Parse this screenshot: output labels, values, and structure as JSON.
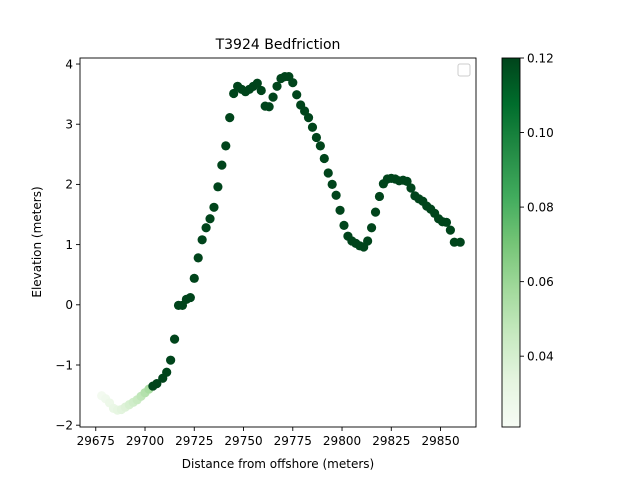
{
  "chart_data": {
    "type": "scatter",
    "title": "T3924 Bedfriction",
    "xlabel": "Distance from offshore (meters)",
    "ylabel": "Elevation (meters)",
    "xlim": [
      29667,
      29868
    ],
    "ylim": [
      -2.03,
      4.1
    ],
    "x_ticks": [
      29675,
      29700,
      29725,
      29750,
      29775,
      29800,
      29825,
      29850
    ],
    "y_ticks": [
      -2,
      -1,
      0,
      1,
      2,
      3,
      4
    ],
    "grid": false,
    "legend": "top-right (empty)",
    "colorbar": {
      "colormap": "Greens",
      "range": [
        0.021,
        0.12
      ],
      "ticks": [
        0.04,
        0.06,
        0.08,
        0.1,
        0.12
      ],
      "tick_labels": [
        "0.04",
        "0.06",
        "0.08",
        "0.10",
        "0.12"
      ]
    },
    "points": [
      [
        29678,
        -1.51,
        0.024
      ],
      [
        29680,
        -1.56,
        0.026
      ],
      [
        29682,
        -1.63,
        0.028
      ],
      [
        29684,
        -1.72,
        0.03
      ],
      [
        29686,
        -1.75,
        0.032
      ],
      [
        29688,
        -1.74,
        0.034
      ],
      [
        29690,
        -1.7,
        0.036
      ],
      [
        29692,
        -1.66,
        0.039
      ],
      [
        29694,
        -1.62,
        0.042
      ],
      [
        29696,
        -1.58,
        0.045
      ],
      [
        29698,
        -1.52,
        0.048
      ],
      [
        29700,
        -1.46,
        0.052
      ],
      [
        29702,
        -1.4,
        0.056
      ],
      [
        29704,
        -1.35,
        0.12
      ],
      [
        29706,
        -1.31,
        0.12
      ],
      [
        29709,
        -1.22,
        0.12
      ],
      [
        29711,
        -1.12,
        0.12
      ],
      [
        29713,
        -0.92,
        0.12
      ],
      [
        29715,
        -0.57,
        0.12
      ],
      [
        29717,
        -0.01,
        0.12
      ],
      [
        29719,
        -0.01,
        0.12
      ],
      [
        29721,
        0.09,
        0.12
      ],
      [
        29723,
        0.12,
        0.12
      ],
      [
        29725,
        0.44,
        0.12
      ],
      [
        29727,
        0.78,
        0.12
      ],
      [
        29729,
        1.08,
        0.12
      ],
      [
        29731,
        1.28,
        0.12
      ],
      [
        29733,
        1.43,
        0.12
      ],
      [
        29735,
        1.62,
        0.12
      ],
      [
        29737,
        1.96,
        0.12
      ],
      [
        29739,
        2.32,
        0.12
      ],
      [
        29741,
        2.64,
        0.12
      ],
      [
        29743,
        3.11,
        0.12
      ],
      [
        29745,
        3.51,
        0.12
      ],
      [
        29747,
        3.63,
        0.12
      ],
      [
        29749,
        3.58,
        0.12
      ],
      [
        29751,
        3.54,
        0.12
      ],
      [
        29753,
        3.58,
        0.12
      ],
      [
        29755,
        3.63,
        0.12
      ],
      [
        29757,
        3.68,
        0.12
      ],
      [
        29759,
        3.56,
        0.12
      ],
      [
        29761,
        3.3,
        0.12
      ],
      [
        29763,
        3.29,
        0.12
      ],
      [
        29765,
        3.45,
        0.12
      ],
      [
        29767,
        3.63,
        0.12
      ],
      [
        29769,
        3.76,
        0.12
      ],
      [
        29771,
        3.79,
        0.12
      ],
      [
        29773,
        3.79,
        0.12
      ],
      [
        29775,
        3.69,
        0.12
      ],
      [
        29777,
        3.49,
        0.12
      ],
      [
        29779,
        3.32,
        0.12
      ],
      [
        29781,
        3.22,
        0.12
      ],
      [
        29783,
        3.11,
        0.12
      ],
      [
        29785,
        2.95,
        0.12
      ],
      [
        29787,
        2.78,
        0.12
      ],
      [
        29789,
        2.64,
        0.12
      ],
      [
        29791,
        2.43,
        0.12
      ],
      [
        29793,
        2.19,
        0.12
      ],
      [
        29795,
        2.0,
        0.12
      ],
      [
        29797,
        1.82,
        0.12
      ],
      [
        29799,
        1.57,
        0.12
      ],
      [
        29801,
        1.32,
        0.12
      ],
      [
        29803,
        1.14,
        0.12
      ],
      [
        29805,
        1.06,
        0.12
      ],
      [
        29807,
        1.02,
        0.12
      ],
      [
        29809,
        0.98,
        0.12
      ],
      [
        29811,
        0.96,
        0.12
      ],
      [
        29813,
        1.06,
        0.12
      ],
      [
        29815,
        1.28,
        0.12
      ],
      [
        29817,
        1.54,
        0.12
      ],
      [
        29819,
        1.8,
        0.12
      ],
      [
        29821,
        2.01,
        0.12
      ],
      [
        29823,
        2.09,
        0.12
      ],
      [
        29825,
        2.1,
        0.12
      ],
      [
        29827,
        2.09,
        0.12
      ],
      [
        29829,
        2.06,
        0.12
      ],
      [
        29831,
        2.07,
        0.12
      ],
      [
        29833,
        2.05,
        0.12
      ],
      [
        29835,
        1.94,
        0.12
      ],
      [
        29837,
        1.81,
        0.12
      ],
      [
        29839,
        1.76,
        0.12
      ],
      [
        29841,
        1.72,
        0.12
      ],
      [
        29843,
        1.64,
        0.12
      ],
      [
        29845,
        1.59,
        0.12
      ],
      [
        29847,
        1.52,
        0.12
      ],
      [
        29849,
        1.43,
        0.12
      ],
      [
        29851,
        1.38,
        0.12
      ],
      [
        29853,
        1.37,
        0.12
      ],
      [
        29855,
        1.24,
        0.12
      ],
      [
        29857,
        1.04,
        0.12
      ],
      [
        29860,
        1.04,
        0.12
      ]
    ]
  }
}
